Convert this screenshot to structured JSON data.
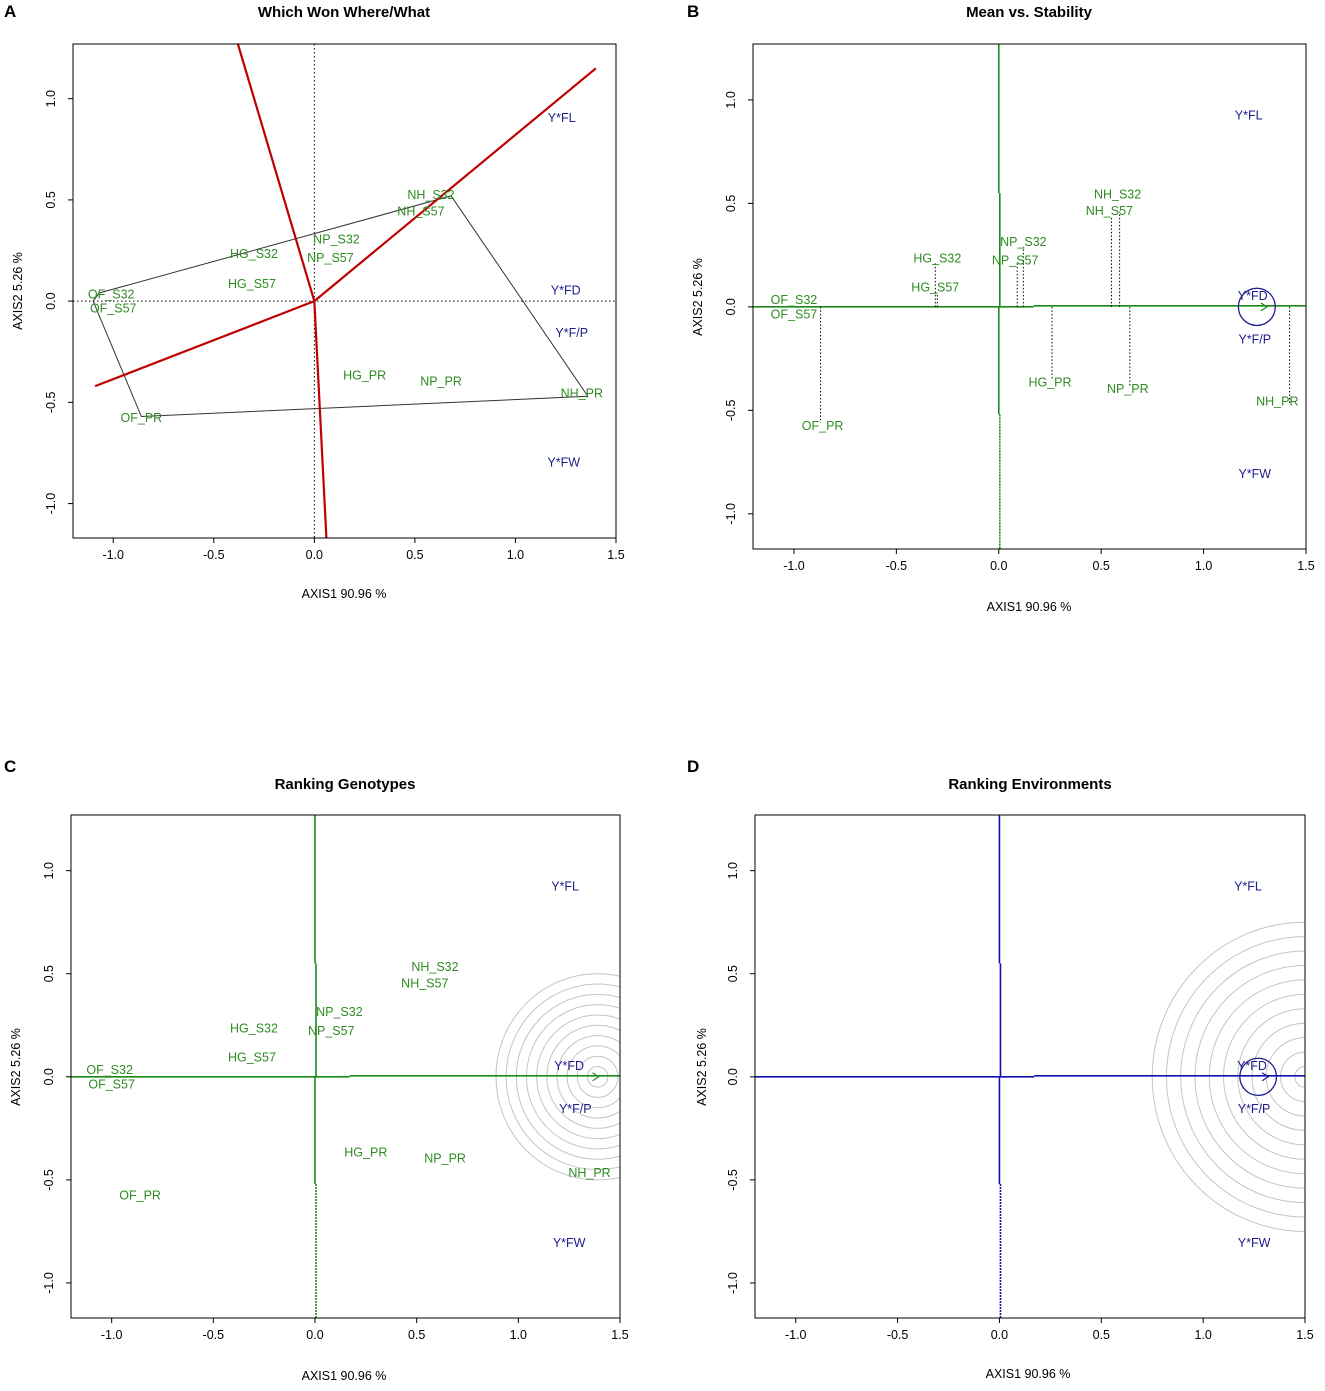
{
  "colors": {
    "genotype": "#2e8b22",
    "environment": "#1c1c8c",
    "polygon_ray": "#c00000",
    "axis_green": "#1a8a1a",
    "axis_blue": "#1010b0",
    "circle_grey": "#c4c4c4"
  },
  "chart_data": [
    {
      "id": "A",
      "type": "scatter",
      "letter": "A",
      "title": "Which Won Where/What",
      "xlabel": "AXIS1 90.96 %",
      "ylabel": "AXIS2 5.26 %",
      "xlim": [
        -1.2,
        1.5
      ],
      "ylim": [
        -1.17,
        1.27
      ],
      "xticks": [
        -1.0,
        -0.5,
        0.0,
        0.5,
        1.0,
        1.5
      ],
      "xtick_labels": [
        "-1.0",
        "-0.5",
        "0.0",
        "0.5",
        "1.0",
        "1.5"
      ],
      "yticks": [
        -1.0,
        -0.5,
        0.0,
        0.5,
        1.0
      ],
      "ytick_labels": [
        "-1.0",
        "-0.5",
        "0.0",
        "0.5",
        "1.0"
      ],
      "reference_lines": "dotted",
      "genotypes": [
        {
          "label": "OF_S32",
          "x": -1.01,
          "y": 0.03
        },
        {
          "label": "OF_S57",
          "x": -1.0,
          "y": -0.04
        },
        {
          "label": "OF_PR",
          "x": -0.86,
          "y": -0.58
        },
        {
          "label": "HG_S32",
          "x": -0.3,
          "y": 0.23
        },
        {
          "label": "HG_S57",
          "x": -0.31,
          "y": 0.08
        },
        {
          "label": "NP_S32",
          "x": 0.11,
          "y": 0.3
        },
        {
          "label": "NP_S57",
          "x": 0.08,
          "y": 0.21
        },
        {
          "label": "NH_S32",
          "x": 0.58,
          "y": 0.52
        },
        {
          "label": "NH_S57",
          "x": 0.53,
          "y": 0.44
        },
        {
          "label": "HG_PR",
          "x": 0.25,
          "y": -0.37
        },
        {
          "label": "NP_PR",
          "x": 0.63,
          "y": -0.4
        },
        {
          "label": "NH_PR",
          "x": 1.33,
          "y": -0.46
        }
      ],
      "environments": [
        {
          "label": "Y*FL",
          "x": 1.23,
          "y": 0.9
        },
        {
          "label": "Y*FD",
          "x": 1.25,
          "y": 0.05
        },
        {
          "label": "Y*F/P",
          "x": 1.28,
          "y": -0.16
        },
        {
          "label": "Y*FW",
          "x": 1.24,
          "y": -0.8
        }
      ],
      "polygon": [
        [
          -1.07,
          0.04
        ],
        [
          0.68,
          0.52
        ],
        [
          1.36,
          -0.47
        ],
        [
          -0.86,
          -0.57
        ],
        [
          -1.1,
          0.0
        ]
      ],
      "rays": [
        [
          -1.09,
          -0.42
        ],
        [
          1.4,
          1.15
        ],
        [
          -0.38,
          1.27
        ],
        [
          0.06,
          -1.17
        ]
      ]
    },
    {
      "id": "B",
      "type": "scatter",
      "letter": "B",
      "title": "Mean vs. Stability",
      "xlabel": "AXIS1 90.96 %",
      "ylabel": "AXIS2 5.26 %",
      "xlim": [
        -1.2,
        1.5
      ],
      "ylim": [
        -1.17,
        1.27
      ],
      "xticks": [
        -1.0,
        -0.5,
        0.0,
        0.5,
        1.0,
        1.5
      ],
      "xtick_labels": [
        "-1.0",
        "-0.5",
        "0.0",
        "0.5",
        "1.0",
        "1.5"
      ],
      "yticks": [
        -1.0,
        -0.5,
        0.0,
        0.5,
        1.0
      ],
      "ytick_labels": [
        "-1.0",
        "-0.5",
        "0.0",
        "0.5",
        "1.0"
      ],
      "genotypes": [
        {
          "label": "OF_S32",
          "x": -1.0,
          "y": 0.03
        },
        {
          "label": "OF_S57",
          "x": -1.0,
          "y": -0.04
        },
        {
          "label": "OF_PR",
          "x": -0.86,
          "y": -0.58
        },
        {
          "label": "HG_S32",
          "x": -0.3,
          "y": 0.23
        },
        {
          "label": "HG_S57",
          "x": -0.31,
          "y": 0.09
        },
        {
          "label": "NP_S32",
          "x": 0.12,
          "y": 0.31
        },
        {
          "label": "NP_S57",
          "x": 0.08,
          "y": 0.22
        },
        {
          "label": "NH_S32",
          "x": 0.58,
          "y": 0.54
        },
        {
          "label": "NH_S57",
          "x": 0.54,
          "y": 0.46
        },
        {
          "label": "HG_PR",
          "x": 0.25,
          "y": -0.37
        },
        {
          "label": "NP_PR",
          "x": 0.63,
          "y": -0.4
        },
        {
          "label": "NH_PR",
          "x": 1.36,
          "y": -0.46
        }
      ],
      "environments": [
        {
          "label": "Y*FL",
          "x": 1.22,
          "y": 0.92
        },
        {
          "label": "Y*FD",
          "x": 1.24,
          "y": 0.05
        },
        {
          "label": "Y*F/P",
          "x": 1.25,
          "y": -0.16
        },
        {
          "label": "Y*FW",
          "x": 1.25,
          "y": -0.81
        }
      ],
      "projections": [
        {
          "x": -0.87,
          "y": -0.56
        },
        {
          "x": -0.31,
          "y": 0.21
        },
        {
          "x": -0.3,
          "y": 0.07
        },
        {
          "x": 0.09,
          "y": 0.21
        },
        {
          "x": 0.12,
          "y": 0.29
        },
        {
          "x": 0.55,
          "y": 0.44
        },
        {
          "x": 0.59,
          "y": 0.46
        },
        {
          "x": 0.26,
          "y": -0.35
        },
        {
          "x": 0.64,
          "y": -0.38
        },
        {
          "x": 1.42,
          "y": -0.47
        }
      ],
      "aec_point": {
        "x": 1.26,
        "y": 0.0,
        "r": 0.09
      }
    },
    {
      "id": "C",
      "type": "scatter",
      "letter": "C",
      "title": "Ranking Genotypes",
      "xlabel": "AXIS1 90.96 %",
      "ylabel": "AXIS2 5.26 %",
      "xlim": [
        -1.2,
        1.5
      ],
      "ylim": [
        -1.17,
        1.27
      ],
      "xticks": [
        -1.0,
        -0.5,
        0.0,
        0.5,
        1.0,
        1.5
      ],
      "xtick_labels": [
        "-1.0",
        "-0.5",
        "0.0",
        "0.5",
        "1.0",
        "1.5"
      ],
      "yticks": [
        -1.0,
        -0.5,
        0.0,
        0.5,
        1.0
      ],
      "ytick_labels": [
        "-1.0",
        "-0.5",
        "0.0",
        "0.5",
        "1.0"
      ],
      "genotypes": [
        {
          "label": "OF_S32",
          "x": -1.01,
          "y": 0.03
        },
        {
          "label": "OF_S57",
          "x": -1.0,
          "y": -0.04
        },
        {
          "label": "OF_PR",
          "x": -0.86,
          "y": -0.58
        },
        {
          "label": "HG_S32",
          "x": -0.3,
          "y": 0.23
        },
        {
          "label": "HG_S57",
          "x": -0.31,
          "y": 0.09
        },
        {
          "label": "NP_S32",
          "x": 0.12,
          "y": 0.31
        },
        {
          "label": "NP_S57",
          "x": 0.08,
          "y": 0.22
        },
        {
          "label": "NH_S32",
          "x": 0.59,
          "y": 0.53
        },
        {
          "label": "NH_S57",
          "x": 0.54,
          "y": 0.45
        },
        {
          "label": "HG_PR",
          "x": 0.25,
          "y": -0.37
        },
        {
          "label": "NP_PR",
          "x": 0.64,
          "y": -0.4
        },
        {
          "label": "NH_PR",
          "x": 1.35,
          "y": -0.47
        }
      ],
      "environments": [
        {
          "label": "Y*FL",
          "x": 1.23,
          "y": 0.92
        },
        {
          "label": "Y*FD",
          "x": 1.25,
          "y": 0.05
        },
        {
          "label": "Y*F/P",
          "x": 1.28,
          "y": -0.16
        },
        {
          "label": "Y*FW",
          "x": 1.25,
          "y": -0.81
        }
      ],
      "ideal_point": {
        "x": 1.39,
        "y": 0.0
      },
      "circle_radii": [
        0.05,
        0.1,
        0.15,
        0.2,
        0.25,
        0.3,
        0.35,
        0.4,
        0.45,
        0.5
      ]
    },
    {
      "id": "D",
      "type": "scatter",
      "letter": "D",
      "title": "Ranking Environments",
      "xlabel": "AXIS1 90.96 %",
      "ylabel": "AXIS2 5.26 %",
      "xlim": [
        -1.2,
        1.5
      ],
      "ylim": [
        -1.17,
        1.27
      ],
      "xticks": [
        -1.0,
        -0.5,
        0.0,
        0.5,
        1.0,
        1.5
      ],
      "xtick_labels": [
        "-1.0",
        "-0.5",
        "0.0",
        "0.5",
        "1.0",
        "1.5"
      ],
      "yticks": [
        -1.0,
        -0.5,
        0.0,
        0.5,
        1.0
      ],
      "ytick_labels": [
        "-1.0",
        "-0.5",
        "0.0",
        "0.5",
        "1.0"
      ],
      "genotypes": [],
      "environments": [
        {
          "label": "Y*FL",
          "x": 1.22,
          "y": 0.92
        },
        {
          "label": "Y*FD",
          "x": 1.24,
          "y": 0.05
        },
        {
          "label": "Y*F/P",
          "x": 1.25,
          "y": -0.16
        },
        {
          "label": "Y*FW",
          "x": 1.25,
          "y": -0.81
        }
      ],
      "ideal_point": {
        "x": 1.5,
        "y": 0.0
      },
      "circle_radii": [
        0.05,
        0.12,
        0.19,
        0.26,
        0.33,
        0.4,
        0.47,
        0.54,
        0.61,
        0.68,
        0.75
      ],
      "aec_point": {
        "x": 1.27,
        "y": 0.0,
        "r": 0.09
      }
    }
  ]
}
